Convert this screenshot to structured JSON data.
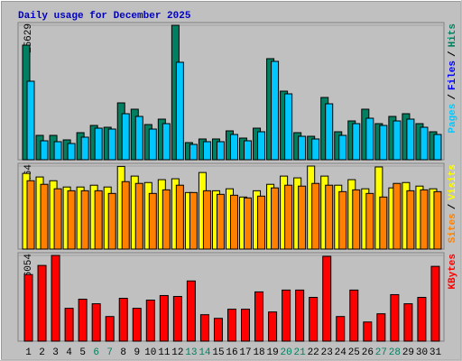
{
  "title": "Daily usage for December 2025",
  "chart_data": [
    {
      "type": "bar",
      "ylim": [
        0,
        15629
      ],
      "yticks": [
        15629
      ],
      "legend_separator": "/",
      "series": [
        {
          "name": "Hits",
          "color": "#008060",
          "values": [
            13322,
            2832,
            2832,
            2308,
            3147,
            3986,
            3776,
            6608,
            5874,
            4091,
            4720,
            15629,
            1993,
            2413,
            2413,
            3357,
            2517,
            3671,
            11748,
            7972,
            3147,
            2727,
            7238,
            3252,
            4510,
            5874,
            4196,
            5035,
            5350,
            4196,
            3252
          ]
        },
        {
          "name": "Files",
          "color": "#0000ff",
          "values": [
            null,
            null,
            null,
            null,
            null,
            null,
            null,
            null,
            null,
            null,
            null,
            null,
            null,
            null,
            null,
            null,
            null,
            null,
            null,
            null,
            null,
            null,
            null,
            null,
            null,
            null,
            null,
            null,
            null,
            null,
            null
          ]
        },
        {
          "name": "Pages",
          "color": "#00c8ff",
          "values": [
            9126,
            2203,
            2098,
            1888,
            2622,
            3671,
            3566,
            5350,
            5035,
            3566,
            4196,
            11329,
            1783,
            2098,
            2098,
            2937,
            2203,
            3252,
            11434,
            7657,
            2727,
            2413,
            6503,
            2832,
            4196,
            4825,
            3986,
            4510,
            4720,
            3776,
            2937
          ]
        }
      ]
    },
    {
      "type": "bar",
      "ylim": [
        0,
        464
      ],
      "yticks": [
        464
      ],
      "legend_separator": "/",
      "series": [
        {
          "name": "Visits",
          "color": "#ffff00",
          "values": [
            423,
            403,
            382,
            347,
            347,
            357,
            347,
            462,
            408,
            372,
            388,
            393,
            316,
            428,
            326,
            337,
            291,
            326,
            362,
            408,
            398,
            464,
            408,
            357,
            388,
            337,
            459,
            342,
            372,
            352,
            337
          ]
        },
        {
          "name": "Sites",
          "color": "#ff8000",
          "values": [
            382,
            362,
            337,
            326,
            326,
            326,
            311,
            377,
            367,
            311,
            331,
            357,
            316,
            326,
            306,
            301,
            286,
            296,
            342,
            357,
            352,
            367,
            357,
            321,
            331,
            311,
            291,
            367,
            326,
            331,
            321
          ]
        }
      ]
    },
    {
      "type": "bar",
      "ylim": [
        0,
        166054
      ],
      "yticks": [
        166054
      ],
      "legend_separator": "/",
      "categories": [
        "1",
        "2",
        "3",
        "4",
        "5",
        "6",
        "7",
        "8",
        "9",
        "10",
        "11",
        "12",
        "13",
        "14",
        "15",
        "16",
        "17",
        "18",
        "19",
        "20",
        "21",
        "22",
        "23",
        "24",
        "25",
        "26",
        "27",
        "28",
        "29",
        "30",
        "31"
      ],
      "category_colors": [
        "#000000",
        "#000000",
        "#000000",
        "#000000",
        "#000000",
        "#008060",
        "#008060",
        "#000000",
        "#000000",
        "#000000",
        "#000000",
        "#000000",
        "#008060",
        "#008060",
        "#000000",
        "#000000",
        "#000000",
        "#000000",
        "#000000",
        "#008060",
        "#008060",
        "#000000",
        "#000000",
        "#000000",
        "#000000",
        "#000000",
        "#008060",
        "#008060",
        "#000000",
        "#000000",
        "#000000"
      ],
      "series": [
        {
          "name": "KBytes",
          "color": "#ff0000",
          "values": [
            128957,
            146622,
            166054,
            63595,
            81260,
            72428,
            47697,
            83027,
            63595,
            79494,
            88327,
            86560,
            116592,
            51230,
            44164,
            61829,
            61829,
            95393,
            56529,
            98926,
            98926,
            84793,
            164287,
            47697,
            98926,
            37097,
            52996,
            90093,
            72428,
            84793,
            144856
          ]
        }
      ]
    }
  ]
}
